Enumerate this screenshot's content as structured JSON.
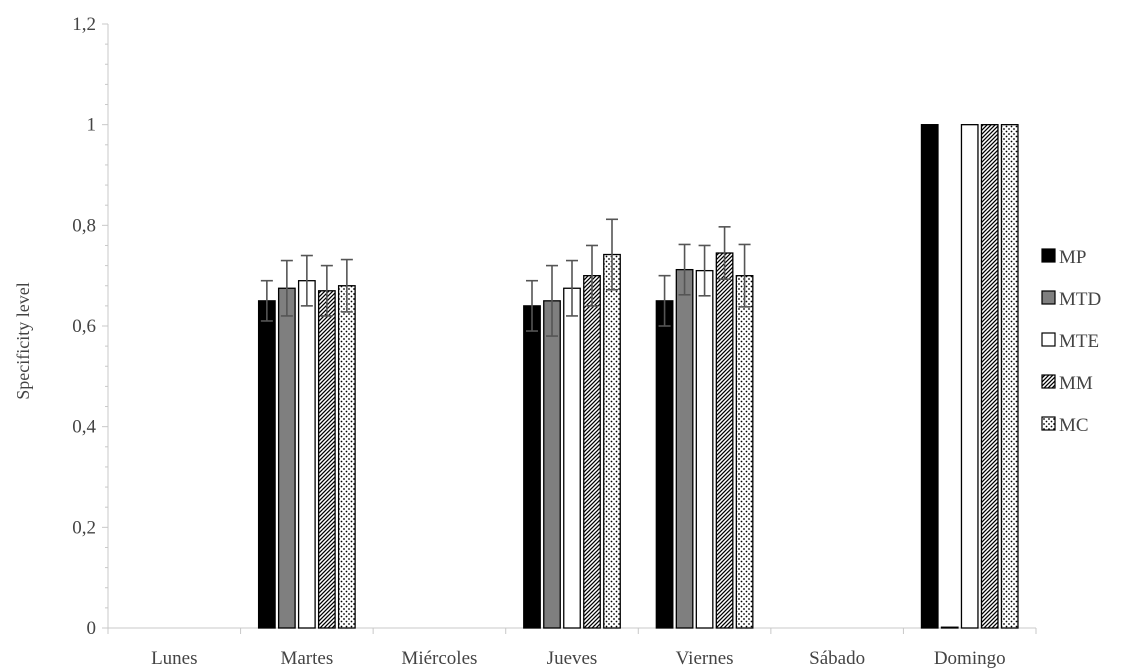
{
  "chart_data": {
    "type": "bar",
    "ylabel": "Specificity level",
    "xlabel": "",
    "ylim": [
      0,
      1.2
    ],
    "ytick_step": 0.2,
    "decimal_comma": true,
    "grid": false,
    "legend_position": "right",
    "categories": [
      "Lunes",
      "Martes",
      "Miércoles",
      "Jueves",
      "Viernes",
      "Sábado",
      "Domingo"
    ],
    "series": [
      {
        "name": "MP",
        "pattern": "solid-black",
        "values": [
          null,
          0.65,
          null,
          0.64,
          0.65,
          null,
          1.0
        ],
        "errors": [
          null,
          0.04,
          null,
          0.05,
          0.05,
          null,
          0
        ]
      },
      {
        "name": "MTD",
        "pattern": "solid-gray",
        "values": [
          null,
          0.675,
          null,
          0.65,
          0.712,
          null,
          0
        ],
        "errors": [
          null,
          0.055,
          null,
          0.07,
          0.05,
          null,
          0
        ]
      },
      {
        "name": "MTE",
        "pattern": "white",
        "values": [
          null,
          0.69,
          null,
          0.675,
          0.71,
          null,
          1.0
        ],
        "errors": [
          null,
          0.05,
          null,
          0.055,
          0.05,
          null,
          0
        ]
      },
      {
        "name": "MM",
        "pattern": "diagonal",
        "values": [
          null,
          0.67,
          null,
          0.7,
          0.745,
          null,
          1.0
        ],
        "errors": [
          null,
          0.05,
          null,
          0.06,
          0.052,
          null,
          0
        ]
      },
      {
        "name": "MC",
        "pattern": "dots",
        "values": [
          null,
          0.68,
          null,
          0.742,
          0.7,
          null,
          1.0
        ],
        "errors": [
          null,
          0.052,
          null,
          0.07,
          0.062,
          null,
          0
        ]
      }
    ],
    "colors": {
      "axis": "#c8c8c8",
      "error_bar": "#555555",
      "bar_stroke": "#000000",
      "gray_fill": "#7f7f7f",
      "text": "#444444"
    }
  }
}
